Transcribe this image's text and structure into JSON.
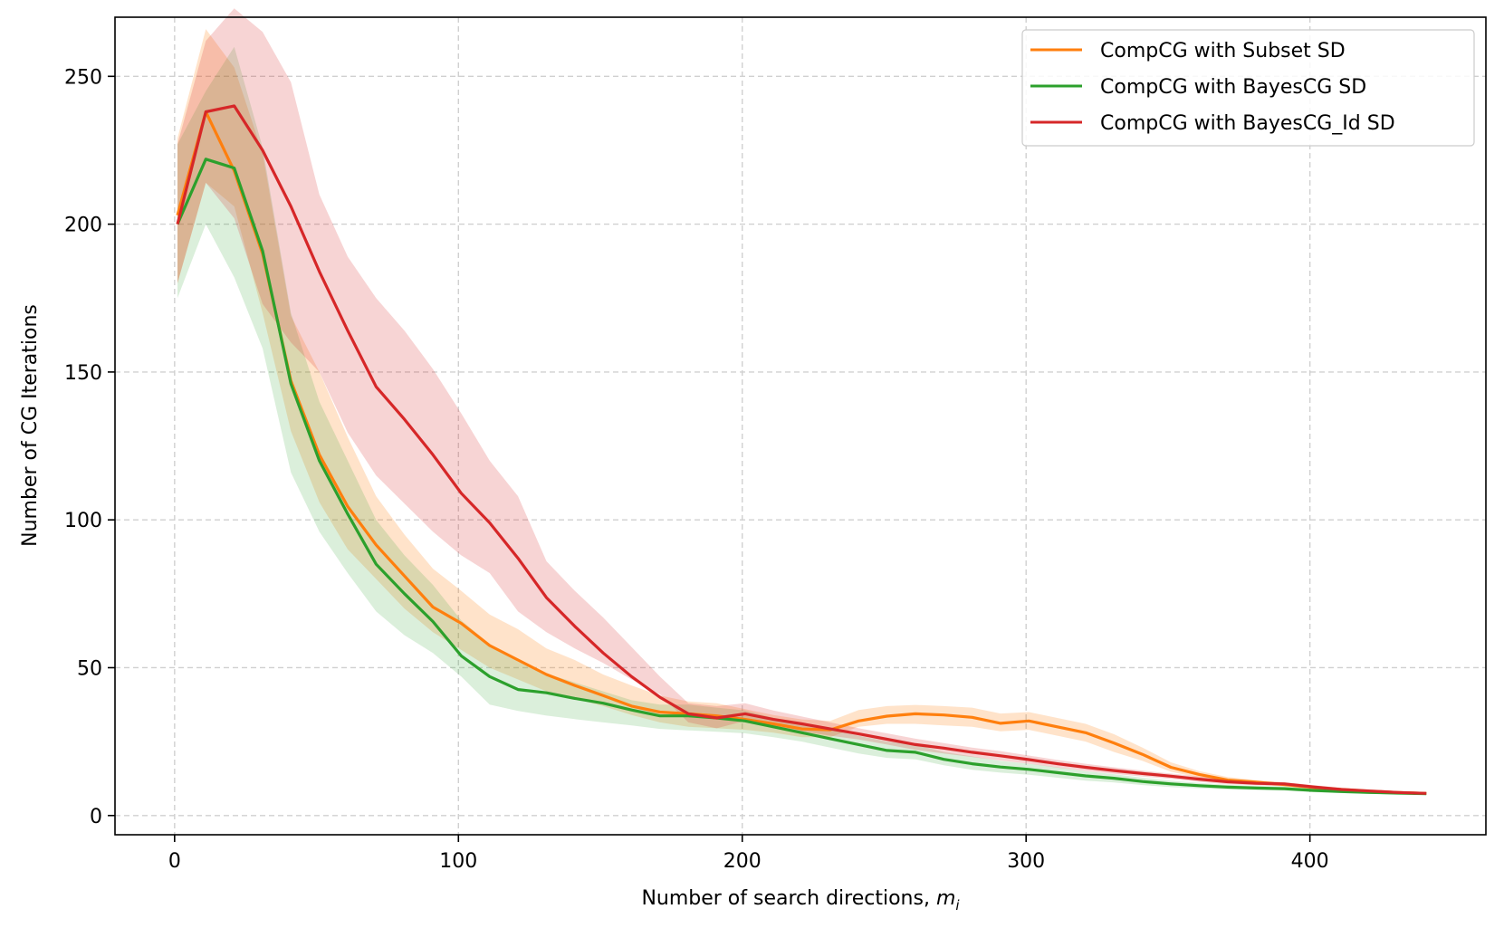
{
  "chart_data": {
    "type": "line",
    "title": "",
    "xlabel": "Number of search directions, ",
    "xlabel_math": "m",
    "xlabel_sub": "i",
    "ylabel": "Number of CG Iterations",
    "xlim": [
      -21,
      462
    ],
    "ylim": [
      -6.5,
      270
    ],
    "xticks": [
      0,
      100,
      200,
      300,
      400
    ],
    "xtick_labels": [
      "0",
      "100",
      "200",
      "300",
      "400"
    ],
    "yticks": [
      0,
      50,
      100,
      150,
      200,
      250
    ],
    "ytick_labels": [
      "0",
      "50",
      "100",
      "150",
      "200",
      "250"
    ],
    "grid": true,
    "legend_position": "top-right",
    "x": [
      1,
      11,
      21,
      31,
      41,
      51,
      61,
      71,
      81,
      91,
      101,
      111,
      121,
      131,
      141,
      151,
      161,
      171,
      181,
      191,
      201,
      211,
      221,
      231,
      241,
      251,
      261,
      271,
      281,
      291,
      301,
      311,
      321,
      331,
      341,
      351,
      361,
      371,
      381,
      391,
      401,
      411,
      421,
      431,
      441
    ],
    "series": [
      {
        "name": "CompCG with Subset SD",
        "color": "#ff7f0e",
        "values": [
          203,
          238,
          218,
          190,
          147,
          122,
          104.5,
          91.5,
          81,
          70.5,
          65,
          57.5,
          52.6,
          47.7,
          44,
          40.6,
          37,
          35,
          34.4,
          33.7,
          32.5,
          31,
          29.3,
          29,
          32,
          33.6,
          34.4,
          34,
          33.2,
          31.2,
          32,
          30,
          28,
          24.5,
          20.7,
          16.3,
          13.9,
          12,
          11.3,
          10.5,
          9.5,
          8.8,
          8.2,
          7.8,
          7.5
        ],
        "upper": [
          229,
          266,
          253,
          224,
          169,
          150,
          128,
          108,
          95,
          83.5,
          76,
          68,
          63,
          56.5,
          52.6,
          47.7,
          44,
          40.6,
          38.6,
          38,
          36,
          34,
          32.5,
          32,
          35.7,
          37,
          37.4,
          37,
          36.5,
          34.5,
          35,
          33,
          31,
          27.5,
          23,
          18,
          15,
          13,
          12,
          11.2,
          10.2,
          9.4,
          8.8,
          8.3,
          8
        ],
        "lower": [
          180,
          214,
          206,
          170,
          130,
          106,
          90,
          80,
          70,
          62,
          56,
          50,
          46,
          42,
          39.5,
          37,
          34,
          31.5,
          30,
          29.5,
          29,
          28,
          26.5,
          26.5,
          30,
          31,
          31,
          30.5,
          30,
          28.5,
          29,
          27,
          25,
          21.5,
          18.5,
          14.8,
          12.8,
          11.1,
          10.5,
          9.8,
          8.8,
          8.2,
          7.6,
          7.3,
          7
        ]
      },
      {
        "name": "CompCG with BayesCG SD",
        "color": "#2ca02c",
        "values": [
          200,
          222,
          219,
          191,
          146,
          120,
          102,
          85,
          75,
          65.6,
          54,
          47,
          42.6,
          41.5,
          39.6,
          38,
          35.7,
          33.7,
          33.7,
          33,
          32,
          30,
          28,
          26,
          24,
          22,
          21.4,
          19,
          17.5,
          16.4,
          15.6,
          14.5,
          13.4,
          12.6,
          11.5,
          10.7,
          10.1,
          9.6,
          9.3,
          9.1,
          8.5,
          8.1,
          7.8,
          7.6,
          7.4
        ],
        "upper": [
          227,
          245,
          260,
          226,
          170,
          140,
          120,
          100,
          88,
          78,
          66,
          58,
          52,
          48,
          45,
          42,
          39,
          37.5,
          37.5,
          36.5,
          35.5,
          33,
          31,
          29,
          27,
          25,
          24,
          21.5,
          20,
          18.5,
          17.5,
          16.3,
          15,
          14,
          12.8,
          11.8,
          11,
          10.4,
          10,
          9.8,
          9.1,
          8.6,
          8.3,
          8,
          7.8
        ],
        "lower": [
          175,
          200,
          182,
          158,
          116,
          96,
          82,
          69,
          61,
          55,
          47,
          37.5,
          35.4,
          33.8,
          32.6,
          31.5,
          30.5,
          29.3,
          28.8,
          28.3,
          27.8,
          26.5,
          25,
          23,
          21,
          19.5,
          19,
          17,
          15.5,
          14.5,
          13.8,
          12.8,
          11.8,
          11.2,
          10.3,
          9.6,
          9.2,
          8.8,
          8.6,
          8.4,
          7.9,
          7.6,
          7.3,
          7.2,
          7
        ]
      },
      {
        "name": "CompCG with BayesCG_Id SD",
        "color": "#d62728",
        "values": [
          200,
          238,
          240,
          225,
          206,
          184,
          164,
          145,
          134,
          122,
          109,
          99,
          87,
          73.7,
          64,
          55,
          47,
          40,
          34.4,
          33,
          34.4,
          32.5,
          31,
          29.3,
          27.6,
          25.8,
          24,
          22.8,
          21.4,
          20.2,
          18.9,
          17.5,
          16.3,
          15.2,
          14.2,
          13.3,
          12.3,
          11.4,
          10.9,
          10.7,
          9.7,
          8.8,
          8.3,
          7.8,
          7.5
        ],
        "upper": [
          227,
          262,
          273,
          265,
          248,
          210,
          189,
          175,
          164,
          151,
          136,
          120,
          108,
          86,
          76,
          67,
          57,
          47,
          38,
          37,
          38,
          35.5,
          33.5,
          31.5,
          29.5,
          27.8,
          26,
          24.5,
          23,
          21.8,
          20.3,
          18.8,
          17.5,
          16.3,
          15.2,
          14.2,
          13.2,
          12.2,
          11.6,
          11.3,
          10.3,
          9.4,
          8.8,
          8.3,
          8
        ],
        "lower": [
          180,
          214,
          202,
          173,
          160,
          150,
          129.5,
          115,
          105.5,
          96,
          88,
          82,
          69,
          62,
          56.5,
          51.6,
          46,
          41,
          31.5,
          29.5,
          32,
          30,
          28.5,
          27,
          25.7,
          24,
          22.2,
          21,
          19.8,
          18.6,
          17.5,
          16.2,
          15.1,
          14.1,
          13.2,
          12.4,
          11.4,
          10.6,
          10.2,
          10,
          9.1,
          8.2,
          7.8,
          7.3,
          7
        ]
      }
    ]
  }
}
